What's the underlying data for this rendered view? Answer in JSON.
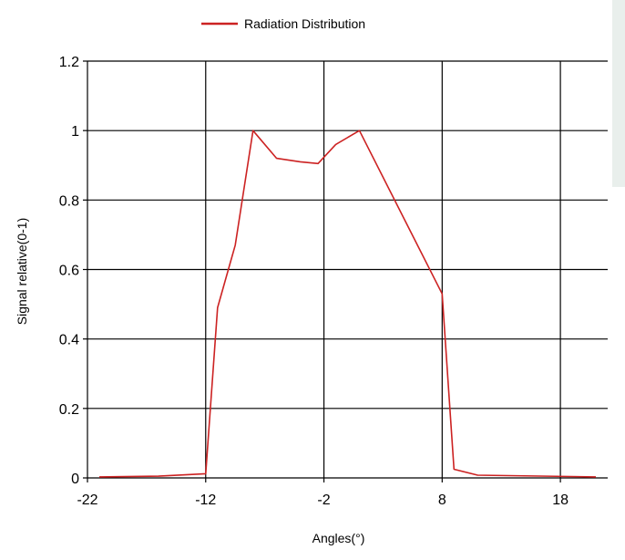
{
  "chart_data": {
    "type": "line",
    "legend": {
      "entries": [
        "Radiation Distribution"
      ],
      "placement": "top-center"
    },
    "xlabel": "Angles(°)",
    "ylabel": "Signal relative(0-1)",
    "xlim": [
      -22,
      22
    ],
    "ylim": [
      0,
      1.2
    ],
    "x_ticks": [
      "-22",
      "-12",
      "-2",
      "8",
      "18"
    ],
    "y_ticks": [
      "0",
      "0.2",
      "0.4",
      "0.6",
      "0.8",
      "1",
      "1.2"
    ],
    "grid": true,
    "series": [
      {
        "name": "Radiation Distribution",
        "color": "#cc2222",
        "x": [
          -21,
          -16,
          -12,
          -11,
          -9.5,
          -8,
          -6,
          -4,
          -2.5,
          -1,
          1,
          8,
          9,
          11,
          21
        ],
        "y": [
          0.003,
          0.005,
          0.012,
          0.49,
          0.67,
          1.0,
          0.92,
          0.91,
          0.905,
          0.96,
          1.0,
          0.53,
          0.025,
          0.008,
          0.003
        ]
      }
    ]
  }
}
